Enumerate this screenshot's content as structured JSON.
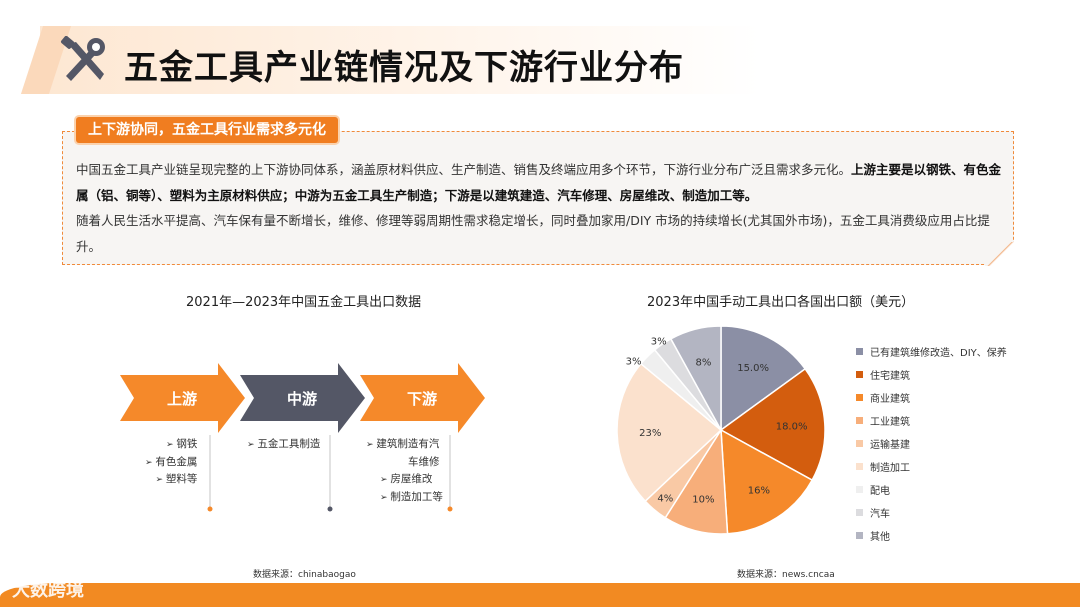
{
  "page": {
    "title": "五金工具产业链情况及下游行业分布",
    "badge": "上下游协同，五金工具行业需求多元化",
    "para1_plain": "中国五金工具产业链呈现完整的上下游协同体系，涵盖原材料供应、生产制造、销售及终端应用多个环节，下游行业分布广泛且需求多元化。",
    "para1_bold": "上游主要是以钢铁、有色金属（铝、铜等）、塑料为主原材料供应；中游为五金工具生产制造；下游是以建筑建造、汽车修理、房屋维改、制造加工等。",
    "para2": " 随着人民生活水平提高、汽车保有量不断增长，维修、修理等弱周期性需求稳定增长，同时叠加家用/DIY 市场的持续增长(尤其国外市场)，五金工具消费级应用占比提升。",
    "logo": "大数跨境"
  },
  "chain": {
    "title": "2021年—2023年中国五金工具出口数据",
    "source": "数据来源：chinabaogao",
    "stages": [
      {
        "label": "上游",
        "color": "#f5892a",
        "items": [
          "钢铁",
          "有色金属",
          "塑料等"
        ]
      },
      {
        "label": "中游",
        "color": "#545766",
        "items": [
          "五金工具制造"
        ]
      },
      {
        "label": "下游",
        "color": "#f5892a",
        "items": [
          "建筑制造有汽",
          "车维修",
          "房屋维改",
          "制造加工等"
        ]
      }
    ],
    "bullet_marker": "➢"
  },
  "chart_data": {
    "type": "pie",
    "title": "2023年中国手动工具出口各国出口额（美元）",
    "source": "数据来源：news.cncaa",
    "legend_position": "right",
    "series": [
      {
        "name": "已有建筑维修改造、DIY、保养",
        "value": 15.0,
        "label": "15.0%",
        "color": "#8b8fa5"
      },
      {
        "name": "住宅建筑",
        "value": 18.0,
        "label": "18.0%",
        "color": "#d35d0e"
      },
      {
        "name": "商业建筑",
        "value": 16,
        "label": "16%",
        "color": "#f5892a"
      },
      {
        "name": "工业建筑",
        "value": 10,
        "label": "10%",
        "color": "#f7ae7a"
      },
      {
        "name": "运输基建",
        "value": 4,
        "label": "4%",
        "color": "#f9c9a5"
      },
      {
        "name": "制造加工",
        "value": 23,
        "label": "23%",
        "color": "#fbe1cd"
      },
      {
        "name": "配电",
        "value": 3,
        "label": "3%",
        "color": "#efefef"
      },
      {
        "name": "汽车",
        "value": 3,
        "label": "3%",
        "color": "#dcdcdf"
      },
      {
        "name": "其他",
        "value": 8,
        "label": "8%",
        "color": "#b3b5c2"
      }
    ]
  }
}
